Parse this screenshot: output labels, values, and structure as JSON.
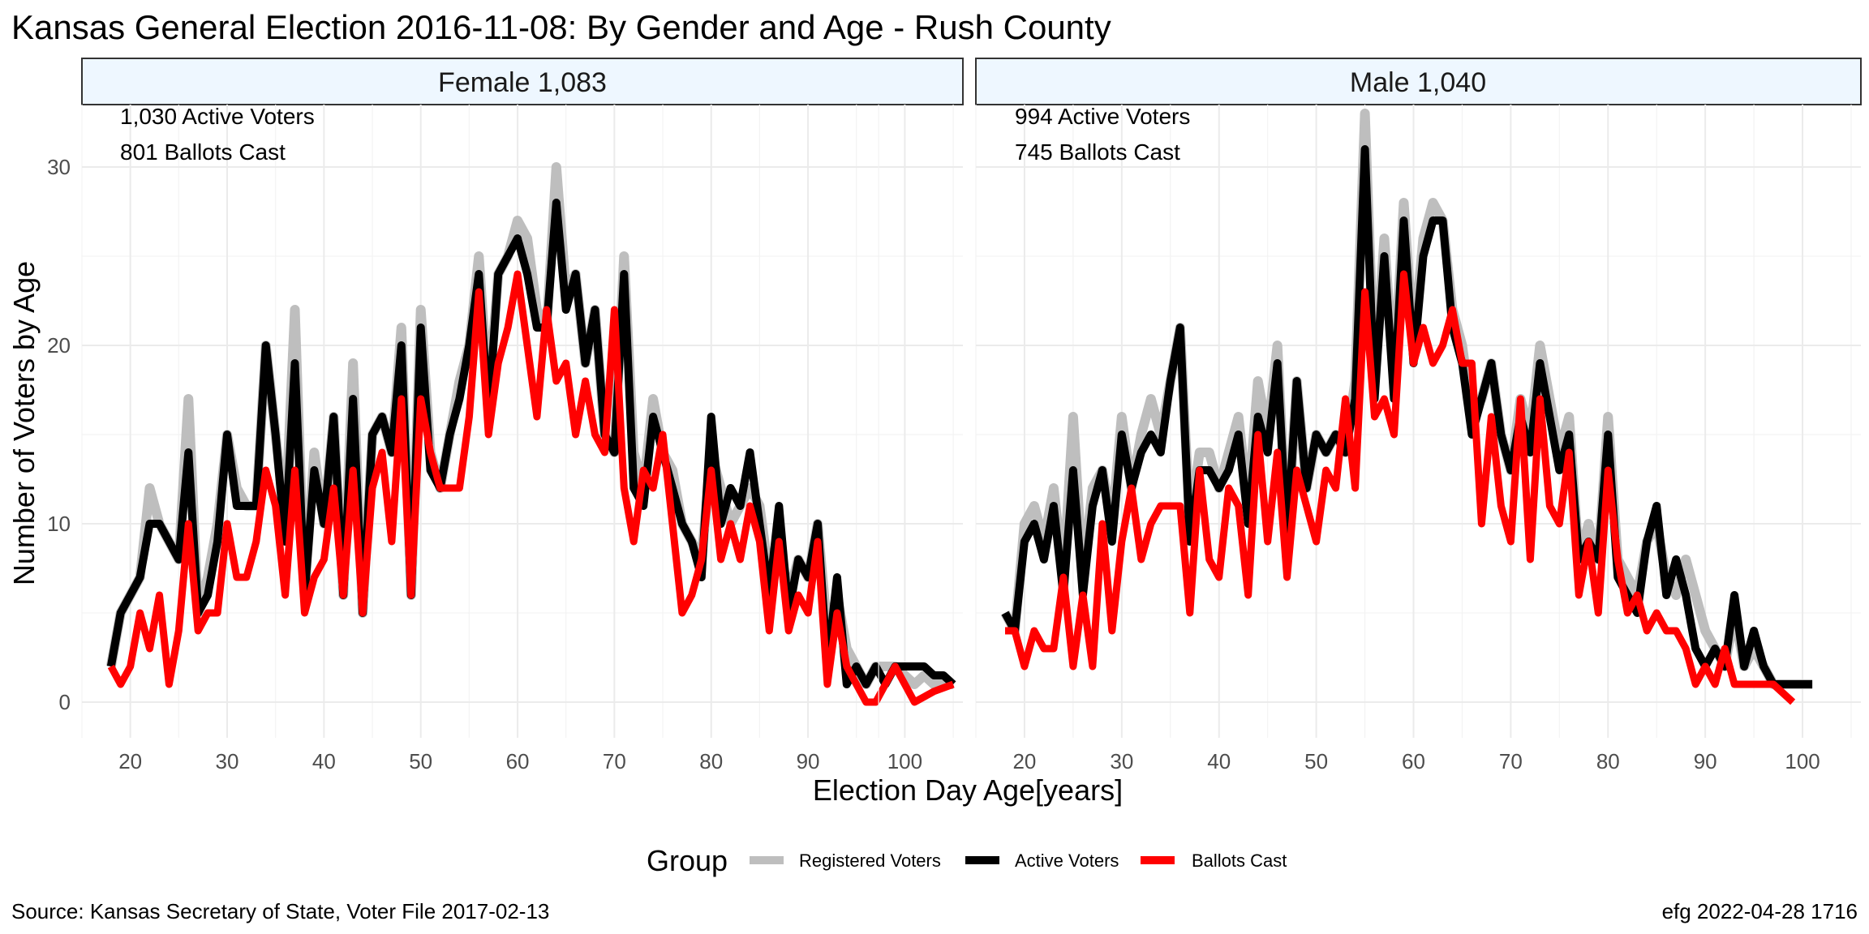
{
  "title": "Kansas General Election 2016-11-08:  By Gender and Age - Rush County",
  "caption_left": "Source:  Kansas Secretary of State, Voter File  2017-02-13",
  "caption_right": "efg 2022-04-28 1716",
  "colors": {
    "registered": "#bebebe",
    "active": "#000000",
    "ballots": "#ff0000",
    "strip_fill": "#eef7ff",
    "grid": "#ebebeb"
  },
  "chart_data": {
    "type": "line",
    "xlabel": "Election Day Age[years]",
    "ylabel": "Number of Voters by Age",
    "xlim": [
      15,
      106
    ],
    "ylim": [
      -2,
      33.5
    ],
    "x_ticks": [
      20,
      30,
      40,
      50,
      60,
      70,
      80,
      90,
      100
    ],
    "y_ticks": [
      0,
      10,
      20,
      30
    ],
    "grid": true,
    "legend": {
      "title": "Group",
      "position": "bottom",
      "entries": [
        "Registered Voters",
        "Active Voters",
        "Ballots Cast"
      ]
    },
    "panels": [
      {
        "strip": "Female 1,083",
        "annotations": [
          "1,030 Active Voters",
          "801 Ballots Cast"
        ],
        "x_start": 18,
        "series": [
          {
            "name": "Registered Voters",
            "values": [
              2,
              5,
              6,
              7,
              12,
              10,
              9,
              8,
              17,
              5,
              7,
              10,
              15,
              12,
              11,
              11,
              20,
              15,
              10,
              22,
              6,
              14,
              10,
              16,
              6,
              19,
              5,
              15,
              16,
              14,
              21,
              6,
              22,
              14,
              12,
              15,
              18,
              20,
              25,
              17,
              24,
              25,
              27,
              26,
              22,
              21,
              30,
              23,
              24,
              19,
              22,
              15,
              14,
              25,
              14,
              12,
              17,
              14,
              13,
              10,
              9,
              8,
              14,
              12,
              10,
              11,
              12,
              11,
              7,
              9,
              6,
              8,
              7,
              10,
              4,
              6,
              3,
              2,
              1,
              2,
              2,
              2,
              1.5,
              1,
              1.5,
              1,
              1,
              1
            ]
          },
          {
            "name": "Active Voters",
            "values": [
              2,
              5,
              6,
              7,
              10,
              10,
              9,
              8,
              14,
              5,
              6,
              9,
              15,
              11,
              11,
              11,
              20,
              15,
              9,
              19,
              6,
              13,
              10,
              16,
              6,
              17,
              5,
              15,
              16,
              14,
              20,
              6,
              21,
              13,
              12,
              15,
              17,
              20,
              24,
              16,
              24,
              25,
              26,
              24,
              21,
              21,
              28,
              22,
              24,
              19,
              22,
              15,
              14,
              24,
              12,
              11,
              16,
              14,
              12,
              10,
              9,
              7,
              16,
              10,
              12,
              11,
              14,
              10,
              6,
              11,
              5,
              8,
              7,
              10,
              2,
              7,
              1,
              2,
              1,
              2,
              1,
              2,
              2,
              2,
              2,
              1.5,
              1.5,
              1
            ]
          },
          {
            "name": "Ballots Cast",
            "values": [
              2,
              1,
              2,
              5,
              3,
              6,
              1,
              4,
              10,
              4,
              5,
              5,
              10,
              7,
              7,
              9,
              13,
              11,
              6,
              13,
              5,
              7,
              8,
              12,
              6,
              13,
              5,
              12,
              14,
              9,
              17,
              6,
              17,
              14,
              12,
              12,
              12,
              16,
              23,
              15,
              19,
              21,
              24,
              20,
              16,
              22,
              18,
              19,
              15,
              18,
              15,
              14,
              22,
              12,
              9,
              13,
              12,
              15,
              10,
              5,
              6,
              8,
              13,
              8,
              10,
              8,
              11,
              9,
              4,
              9,
              4,
              6,
              5,
              9,
              1,
              5,
              2,
              1,
              0,
              0,
              1,
              2,
              1,
              0,
              0.3,
              0.6,
              0.8,
              1
            ]
          }
        ]
      },
      {
        "strip": "Male 1,040",
        "annotations": [
          "994 Active Voters",
          "745 Ballots Cast"
        ],
        "x_start": 18,
        "series": [
          {
            "name": "Registered Voters",
            "values": [
              5,
              4,
              10,
              11,
              9,
              12,
              7,
              16,
              7,
              12,
              13,
              10,
              16,
              12,
              15,
              17,
              15,
              18,
              21,
              10,
              14,
              14,
              12,
              14,
              16,
              11,
              18,
              15,
              20,
              9,
              18,
              12,
              15,
              14,
              15,
              14,
              18,
              33,
              18,
              26,
              18,
              28,
              20,
              26,
              28,
              27,
              22,
              20,
              16,
              17,
              19,
              15,
              13,
              17,
              15,
              20,
              17,
              14,
              16,
              8,
              10,
              8,
              16,
              8,
              7,
              6,
              9,
              10,
              7,
              6,
              8,
              6,
              4,
              3,
              2,
              5,
              2,
              3,
              2,
              1,
              1,
              1,
              1,
              1
            ]
          },
          {
            "name": "Active Voters",
            "values": [
              5,
              4,
              9,
              10,
              8,
              11,
              6,
              13,
              6,
              11,
              13,
              9,
              15,
              12,
              14,
              15,
              14,
              18,
              21,
              9,
              13,
              13,
              12,
              13,
              15,
              10,
              16,
              14,
              19,
              9,
              18,
              12,
              15,
              14,
              15,
              14,
              17,
              31,
              17,
              25,
              17,
              27,
              19,
              25,
              27,
              27,
              21,
              19,
              15,
              17,
              19,
              15,
              13,
              16,
              14,
              19,
              16,
              13,
              15,
              8,
              9,
              8,
              15,
              7,
              6,
              5,
              9,
              11,
              6,
              8,
              6,
              3,
              2,
              3,
              2,
              6,
              2,
              4,
              2,
              1,
              1,
              1,
              1,
              1
            ]
          },
          {
            "name": "Ballots Cast",
            "values": [
              4,
              4,
              2,
              4,
              3,
              3,
              7,
              2,
              6,
              2,
              10,
              4,
              9,
              12,
              8,
              10,
              11,
              11,
              11,
              5,
              13,
              8,
              7,
              12,
              11,
              6,
              15,
              9,
              14,
              7,
              13,
              11,
              9,
              13,
              12,
              17,
              12,
              23,
              16,
              17,
              15,
              24,
              19,
              21,
              19,
              20,
              22,
              19,
              19,
              10,
              16,
              11,
              9,
              17,
              8,
              17,
              11,
              10,
              14,
              6,
              9,
              5,
              13,
              8,
              5,
              6,
              4,
              5,
              4,
              4,
              3,
              1,
              2,
              1,
              3,
              1,
              1,
              1,
              1,
              1,
              0.5,
              0
            ]
          }
        ]
      }
    ]
  }
}
